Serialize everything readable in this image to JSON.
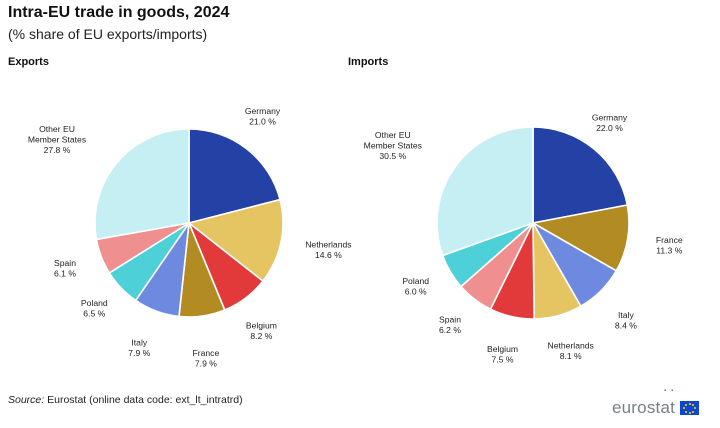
{
  "header": {
    "title": "Intra-EU trade in goods, 2024",
    "subtitle": "(% share of EU exports/imports)"
  },
  "panels": [
    {
      "title": "Exports"
    },
    {
      "title": "Imports"
    }
  ],
  "chart_data": [
    {
      "type": "pie",
      "title": "Exports",
      "unit": "%",
      "slices": [
        {
          "label": "Germany",
          "value": 21.0,
          "display": "21.0 %",
          "color": "#2441a6"
        },
        {
          "label": "Netherlands",
          "value": 14.6,
          "display": "14.6 %",
          "color": "#e5c462"
        },
        {
          "label": "Belgium",
          "value": 8.2,
          "display": "8.2 %",
          "color": "#e23a3a"
        },
        {
          "label": "France",
          "value": 7.9,
          "display": "7.9 %",
          "color": "#b28c22"
        },
        {
          "label": "Italy",
          "value": 7.9,
          "display": "7.9 %",
          "color": "#6e8ae0"
        },
        {
          "label": "Poland",
          "value": 6.5,
          "display": "6.5 %",
          "color": "#4dd0d7"
        },
        {
          "label": "Spain",
          "value": 6.1,
          "display": "6.1 %",
          "color": "#ef8f8f"
        },
        {
          "label": "Other EU\nMember States",
          "value": 27.8,
          "display": "27.8 %",
          "color": "#c5eff2"
        }
      ]
    },
    {
      "type": "pie",
      "title": "Imports",
      "unit": "%",
      "slices": [
        {
          "label": "Germany",
          "value": 22.0,
          "display": "22.0 %",
          "color": "#2441a6"
        },
        {
          "label": "France",
          "value": 11.3,
          "display": "11.3 %",
          "color": "#b28c22"
        },
        {
          "label": "Italy",
          "value": 8.4,
          "display": "8.4 %",
          "color": "#6e8ae0"
        },
        {
          "label": "Netherlands",
          "value": 8.1,
          "display": "8.1 %",
          "color": "#e5c462"
        },
        {
          "label": "Belgium",
          "value": 7.5,
          "display": "7.5 %",
          "color": "#e23a3a"
        },
        {
          "label": "Spain",
          "value": 6.2,
          "display": "6.2 %",
          "color": "#ef8f8f"
        },
        {
          "label": "Poland",
          "value": 6.0,
          "display": "6.0 %",
          "color": "#4dd0d7"
        },
        {
          "label": "Other EU\nMember States",
          "value": 30.5,
          "display": "30.5 %",
          "color": "#c5eff2"
        }
      ]
    }
  ],
  "footer": {
    "source_label": "Source:",
    "source_text": " Eurostat (online data code: ext_lt_intratrd)",
    "logo_text": "eurostat"
  }
}
